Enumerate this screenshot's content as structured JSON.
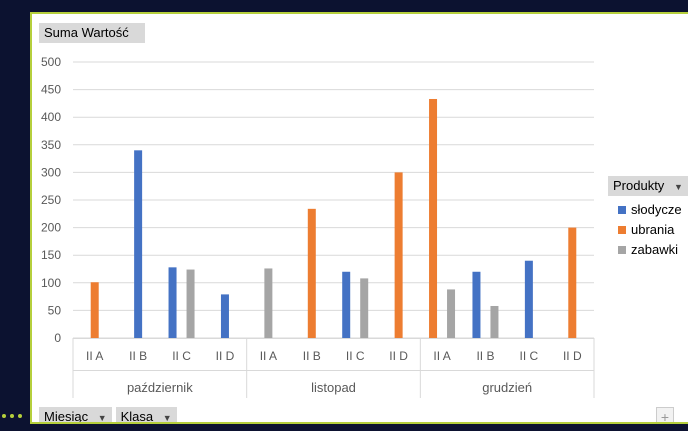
{
  "colors": {
    "slodycze": "#4472c4",
    "ubrania": "#ed7d31",
    "zabawki": "#a5a5a5",
    "frame_accent": "#b5cf3c",
    "background": "#0c1230"
  },
  "pivot": {
    "value_field": "Suma Wartość",
    "legend_field": "Produkty",
    "row_fields": [
      "Miesiąc",
      "Klasa"
    ],
    "dropdown_icon": "dropdown-arrow-icon"
  },
  "zoom": {
    "plus": "+",
    "minus": "−"
  },
  "chart_data": {
    "type": "bar",
    "title": "",
    "xlabel": "",
    "ylabel": "",
    "ylim": [
      0,
      500
    ],
    "yticks": [
      0,
      50,
      100,
      150,
      200,
      250,
      300,
      350,
      400,
      450,
      500
    ],
    "grid": true,
    "legend_position": "right",
    "groups": [
      {
        "label": "październik",
        "categories": [
          "II A",
          "II B",
          "II C",
          "II D"
        ]
      },
      {
        "label": "listopad",
        "categories": [
          "II A",
          "II B",
          "II C",
          "II D"
        ]
      },
      {
        "label": "grudzień",
        "categories": [
          "II A",
          "II B",
          "II C",
          "II D"
        ]
      }
    ],
    "series": [
      {
        "name": "słodycze",
        "values": [
          null,
          340,
          128,
          79,
          null,
          null,
          120,
          null,
          null,
          120,
          140,
          null
        ]
      },
      {
        "name": "ubrania",
        "values": [
          101,
          null,
          null,
          null,
          null,
          234,
          null,
          300,
          433,
          null,
          null,
          200
        ]
      },
      {
        "name": "zabawki",
        "values": [
          null,
          null,
          124,
          null,
          126,
          null,
          108,
          null,
          88,
          58,
          null,
          null
        ]
      }
    ]
  }
}
